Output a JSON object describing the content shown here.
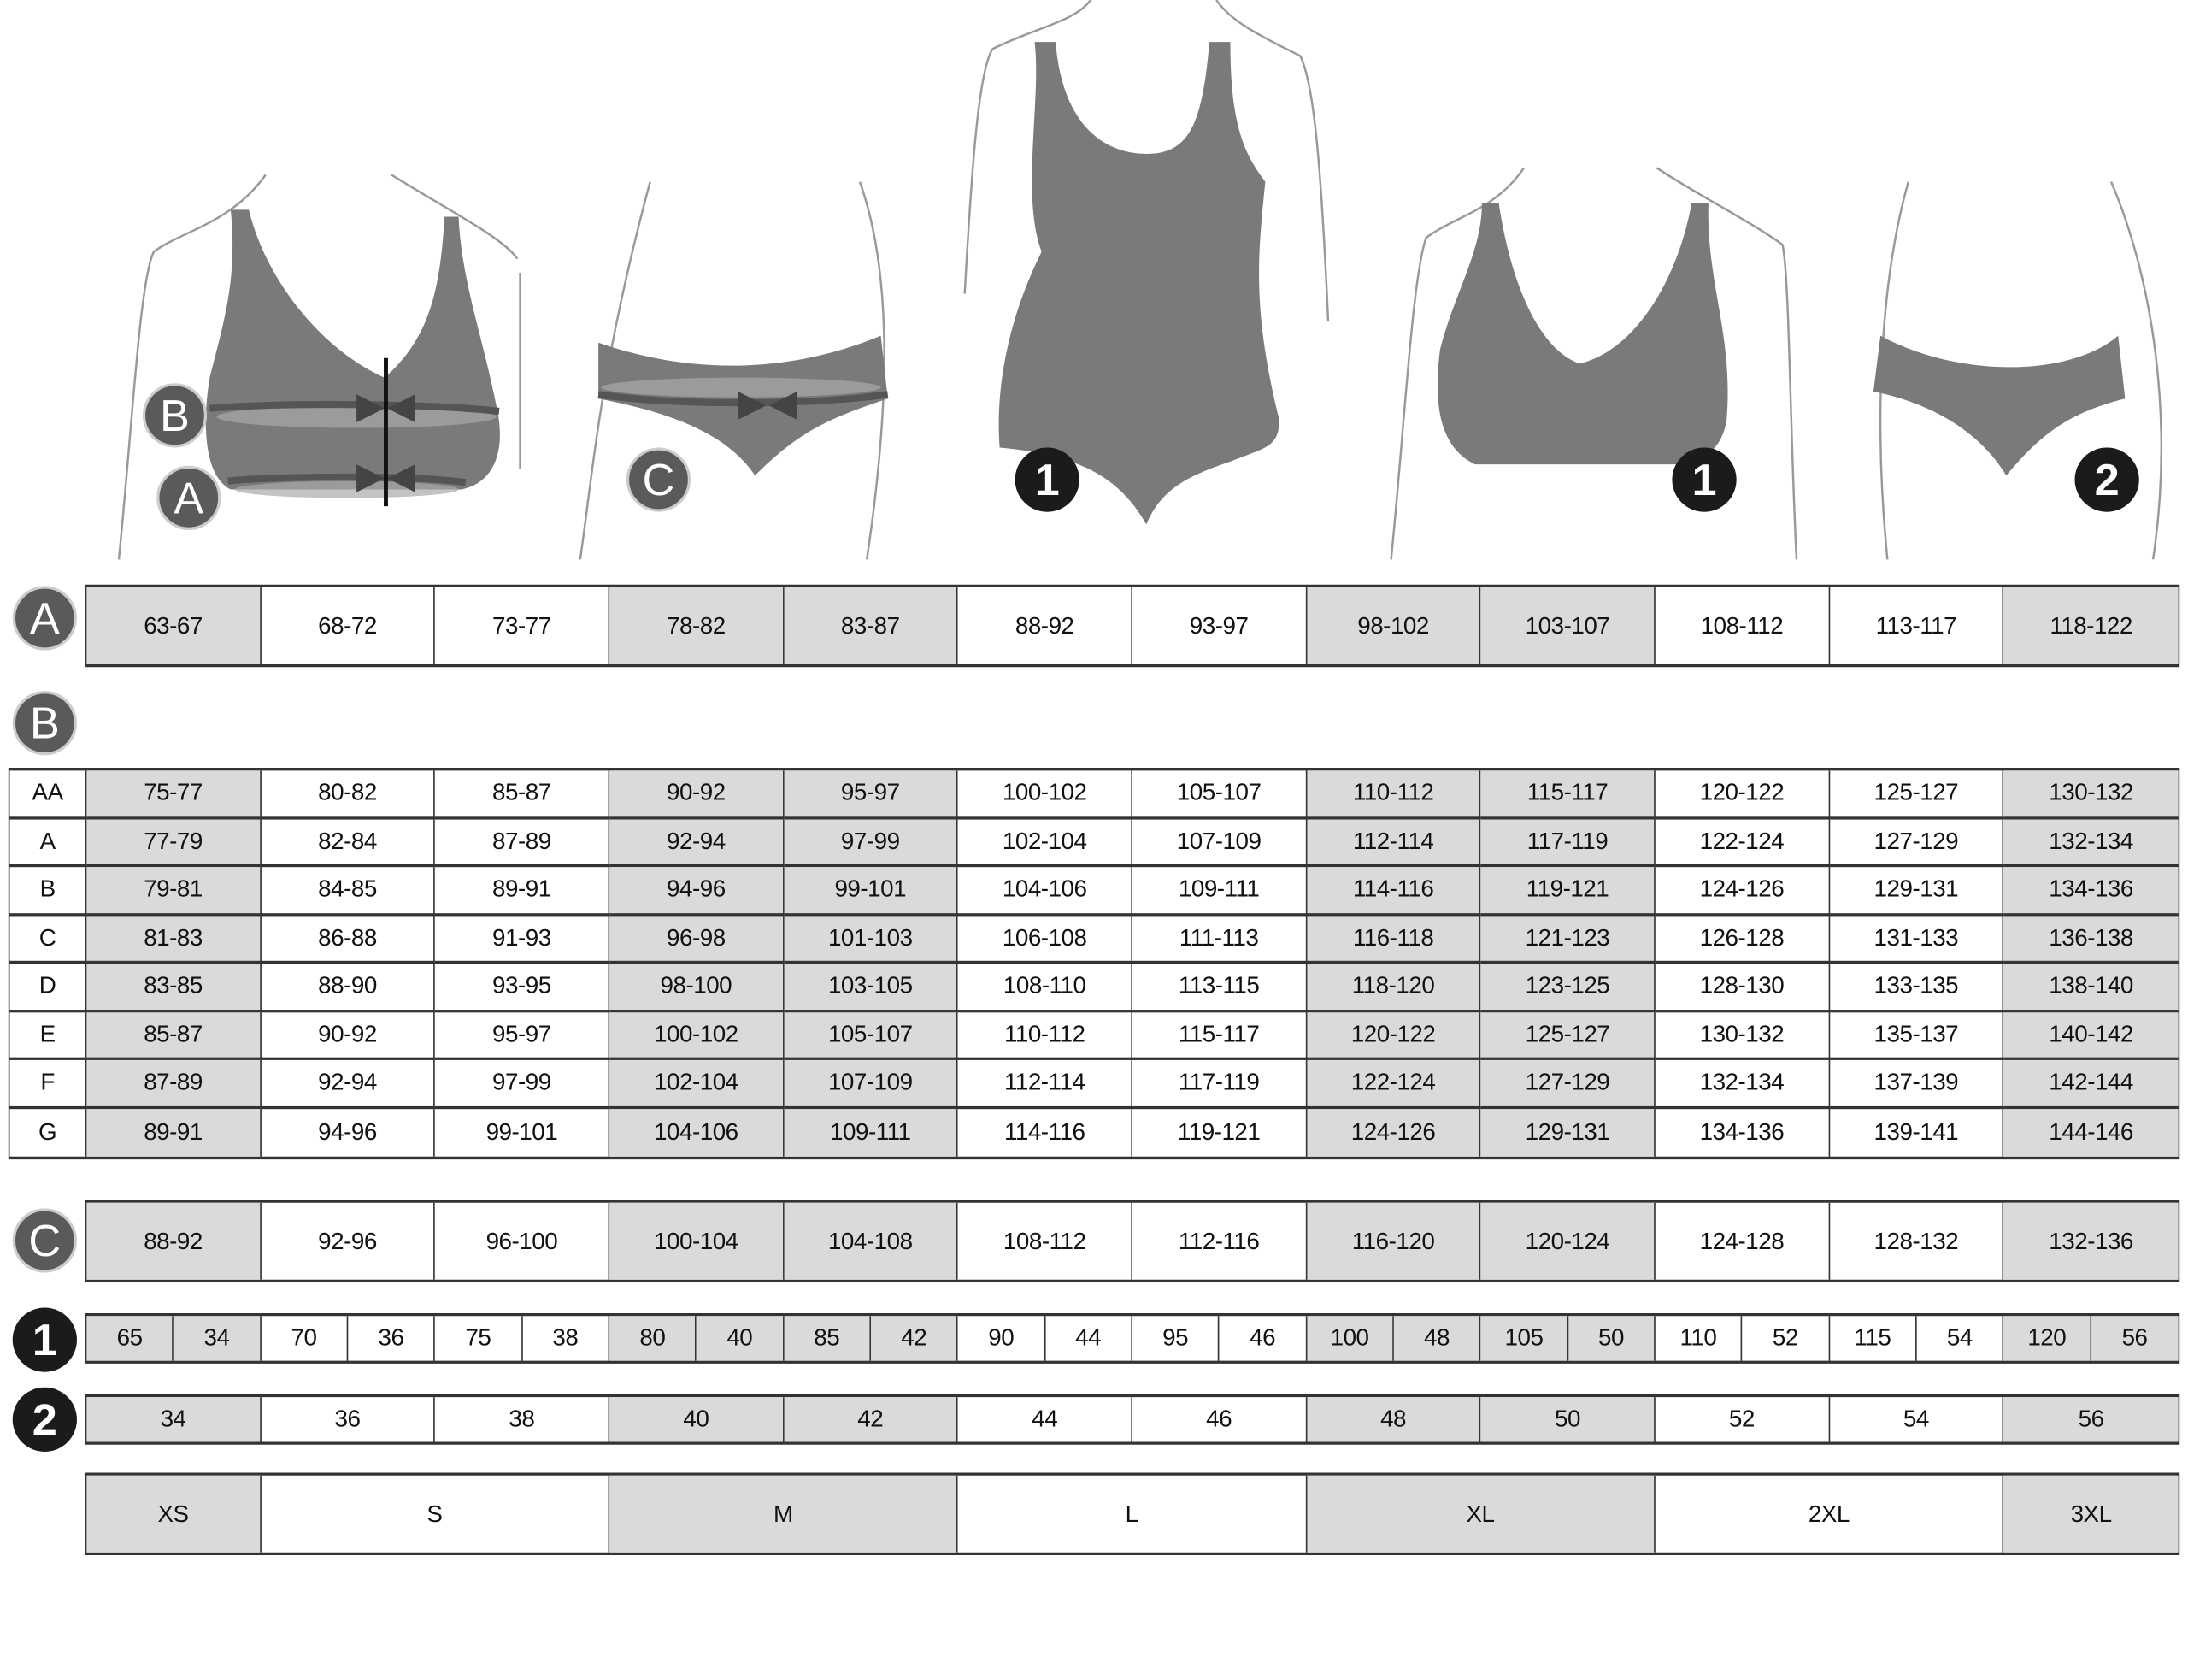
{
  "colors": {
    "shade": "#dadada",
    "figure": "#7a7a7a",
    "badge_dark": "#1b1b1b",
    "badge_light": "#5a5a5a"
  },
  "figures": [
    {
      "name": "bra-measurement",
      "badges": [
        "B",
        "A"
      ]
    },
    {
      "name": "hip-measurement",
      "badges": [
        "C"
      ]
    },
    {
      "name": "bodysuit",
      "badges": [
        "1"
      ]
    },
    {
      "name": "bra",
      "badges": [
        "1"
      ]
    },
    {
      "name": "briefs",
      "badges": [
        "2"
      ]
    }
  ],
  "shaded_columns": [
    1,
    4,
    5,
    8,
    9,
    12
  ],
  "table_a": {
    "label": "A",
    "values": [
      "63-67",
      "68-72",
      "73-77",
      "78-82",
      "83-87",
      "88-92",
      "93-97",
      "98-102",
      "103-107",
      "108-112",
      "113-117",
      "118-122"
    ]
  },
  "table_b": {
    "label": "B",
    "rows": [
      {
        "cup": "AA",
        "values": [
          "75-77",
          "80-82",
          "85-87",
          "90-92",
          "95-97",
          "100-102",
          "105-107",
          "110-112",
          "115-117",
          "120-122",
          "125-127",
          "130-132"
        ]
      },
      {
        "cup": "A",
        "values": [
          "77-79",
          "82-84",
          "87-89",
          "92-94",
          "97-99",
          "102-104",
          "107-109",
          "112-114",
          "117-119",
          "122-124",
          "127-129",
          "132-134"
        ]
      },
      {
        "cup": "B",
        "values": [
          "79-81",
          "84-85",
          "89-91",
          "94-96",
          "99-101",
          "104-106",
          "109-111",
          "114-116",
          "119-121",
          "124-126",
          "129-131",
          "134-136"
        ]
      },
      {
        "cup": "C",
        "values": [
          "81-83",
          "86-88",
          "91-93",
          "96-98",
          "101-103",
          "106-108",
          "111-113",
          "116-118",
          "121-123",
          "126-128",
          "131-133",
          "136-138"
        ]
      },
      {
        "cup": "D",
        "values": [
          "83-85",
          "88-90",
          "93-95",
          "98-100",
          "103-105",
          "108-110",
          "113-115",
          "118-120",
          "123-125",
          "128-130",
          "133-135",
          "138-140"
        ]
      },
      {
        "cup": "E",
        "values": [
          "85-87",
          "90-92",
          "95-97",
          "100-102",
          "105-107",
          "110-112",
          "115-117",
          "120-122",
          "125-127",
          "130-132",
          "135-137",
          "140-142"
        ]
      },
      {
        "cup": "F",
        "values": [
          "87-89",
          "92-94",
          "97-99",
          "102-104",
          "107-109",
          "112-114",
          "117-119",
          "122-124",
          "127-129",
          "132-134",
          "137-139",
          "142-144"
        ]
      },
      {
        "cup": "G",
        "values": [
          "89-91",
          "94-96",
          "99-101",
          "104-106",
          "109-111",
          "114-116",
          "119-121",
          "124-126",
          "129-131",
          "134-136",
          "139-141",
          "144-146"
        ]
      }
    ]
  },
  "table_c": {
    "label": "C",
    "values": [
      "88-92",
      "92-96",
      "96-100",
      "100-104",
      "104-108",
      "108-112",
      "112-116",
      "116-120",
      "120-124",
      "124-128",
      "128-132",
      "132-136"
    ]
  },
  "table_1": {
    "label": "1",
    "values": [
      [
        "65",
        "34"
      ],
      [
        "70",
        "36"
      ],
      [
        "75",
        "38"
      ],
      [
        "80",
        "40"
      ],
      [
        "85",
        "42"
      ],
      [
        "90",
        "44"
      ],
      [
        "95",
        "46"
      ],
      [
        "100",
        "48"
      ],
      [
        "105",
        "50"
      ],
      [
        "110",
        "52"
      ],
      [
        "115",
        "54"
      ],
      [
        "120",
        "56"
      ]
    ]
  },
  "table_2": {
    "label": "2",
    "values": [
      "34",
      "36",
      "38",
      "40",
      "42",
      "44",
      "46",
      "48",
      "50",
      "52",
      "54",
      "56"
    ]
  },
  "sizes": [
    {
      "label": "XS",
      "span": 1,
      "shaded": true
    },
    {
      "label": "S",
      "span": 2,
      "shaded": false
    },
    {
      "label": "M",
      "span": 2,
      "shaded": true
    },
    {
      "label": "L",
      "span": 2,
      "shaded": false
    },
    {
      "label": "XL",
      "span": 2,
      "shaded": true
    },
    {
      "label": "2XL",
      "span": 2,
      "shaded": false
    },
    {
      "label": "3XL",
      "span": 1,
      "shaded": true
    }
  ]
}
